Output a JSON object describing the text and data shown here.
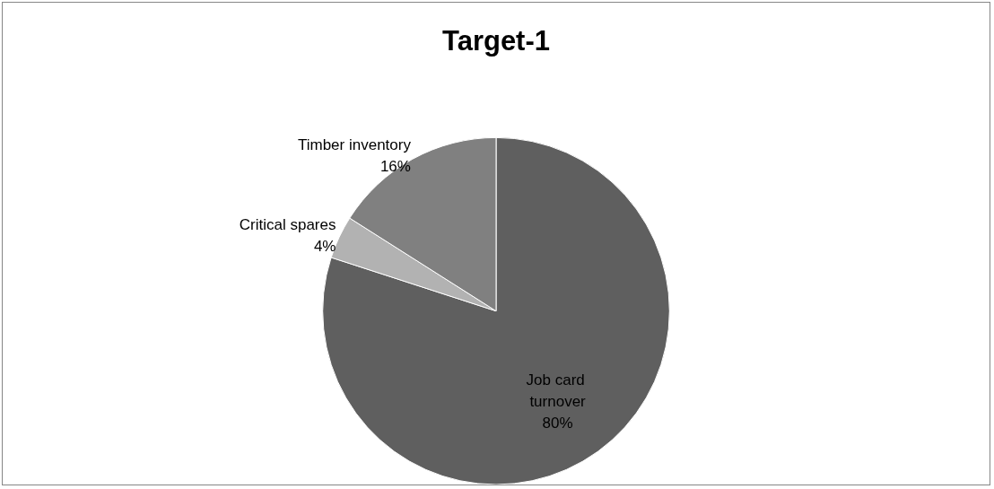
{
  "chart_data": {
    "type": "pie",
    "title": "Target-1",
    "categories": [
      "Job card turnover",
      "Critical spares",
      "Timber inventory"
    ],
    "values": [
      80,
      4,
      16
    ],
    "colors": [
      "#5f5f5f",
      "#b2b2b2",
      "#808080"
    ],
    "value_labels": [
      "80%",
      "4%",
      "16%"
    ],
    "legend": false
  }
}
